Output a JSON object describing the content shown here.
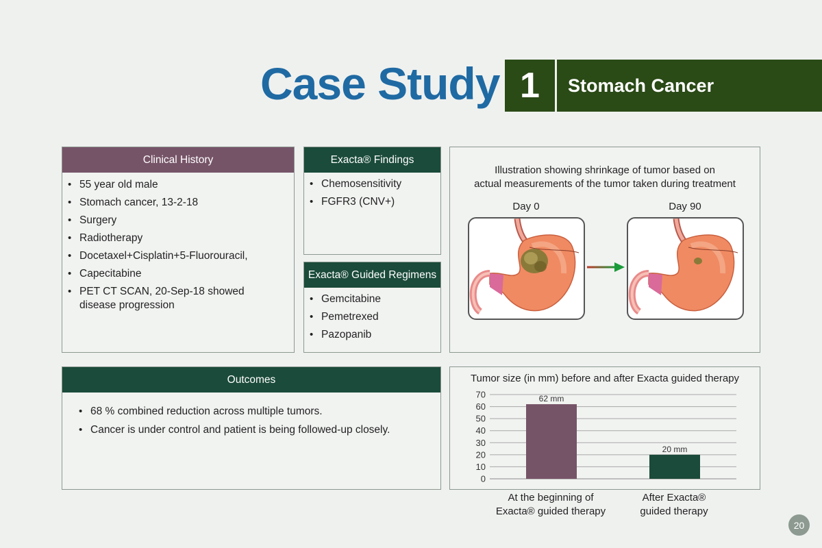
{
  "header": {
    "title": "Case Study",
    "number": "1",
    "subtitle": "Stomach Cancer"
  },
  "clinical_history": {
    "heading": "Clinical History",
    "items": [
      "55 year old male",
      "Stomach cancer, 13-2-18",
      "Surgery",
      "Radiotherapy",
      "Docetaxel+Cisplatin+5-Fluorouracil,",
      "Capecitabine",
      "PET CT SCAN, 20-Sep-18 showed disease progression"
    ]
  },
  "findings": {
    "heading": "Exacta® Findings",
    "items": [
      "Chemosensitivity",
      "FGFR3 (CNV+)"
    ]
  },
  "regimens": {
    "heading": "Exacta® Guided Regimens",
    "items": [
      "Gemcitabine",
      "Pemetrexed",
      "Pazopanib"
    ]
  },
  "illustration": {
    "caption_line1": "Illustration showing shrinkage of tumor based on",
    "caption_line2": "actual measurements of the tumor taken during treatment",
    "day_before": "Day 0",
    "day_after": "Day 90"
  },
  "outcomes": {
    "heading": "Outcomes",
    "items": [
      "68 % combined reduction across multiple tumors.",
      "Cancer is under control and patient is being followed-up closely."
    ]
  },
  "chart_data": {
    "type": "bar",
    "title": "Tumor size (in mm) before and after Exacta guided therapy",
    "categories": [
      "At the beginning of Exacta® guided therapy",
      "After Exacta® guided therapy"
    ],
    "category_lines": [
      [
        "At the beginning of",
        "Exacta® guided therapy"
      ],
      [
        "After Exacta®",
        "guided therapy"
      ]
    ],
    "values": [
      62,
      20
    ],
    "data_labels": [
      "62 mm",
      "20 mm"
    ],
    "bar_colors": [
      "#765468",
      "#1b4b3a"
    ],
    "ylim": [
      0,
      70
    ],
    "yticks": [
      0,
      10,
      20,
      30,
      40,
      50,
      60,
      70
    ],
    "grid": true,
    "xlabel": "",
    "ylabel": ""
  },
  "page": {
    "number": "20"
  },
  "colors": {
    "title_blue": "#1f6aa3",
    "header_green": "#2a4a16",
    "purple": "#765468",
    "dark_green": "#1b4b3a",
    "background": "#eff1ef"
  }
}
